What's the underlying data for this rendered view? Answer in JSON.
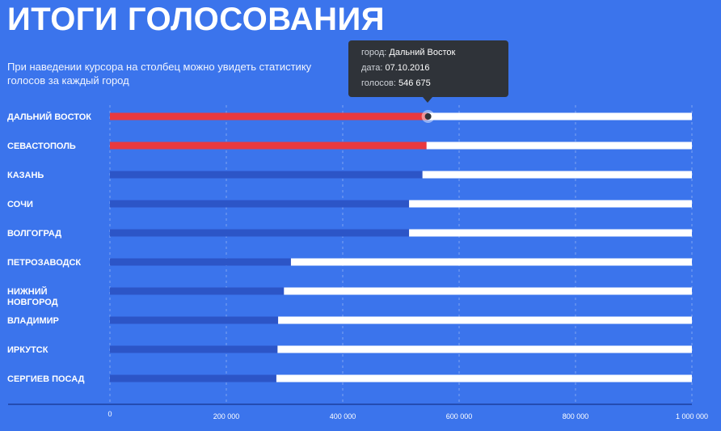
{
  "header": {
    "title": "ИТОГИ ГОЛОСОВАНИЯ",
    "subtitle": "При наведении курсора на столбец можно увидеть статистику голосов за каждый город"
  },
  "tooltip": {
    "city_label": "город:",
    "city": "Дальний Восток",
    "date_label": "дата:",
    "date": "07.10.2016",
    "votes_label": "голосов:",
    "votes": "546 675"
  },
  "colors": {
    "background": "#3b74ec",
    "bar": "#2c55c7",
    "highlight": "#e8393f",
    "track": "#ffffff"
  },
  "chart_data": {
    "type": "bar",
    "orientation": "horizontal",
    "title": "ИТОГИ ГОЛОСОВАНИЯ",
    "categories": [
      [
        "ДАЛЬНИЙ ВОСТОК"
      ],
      [
        "СЕВАСТОПОЛЬ"
      ],
      [
        "КАЗАНЬ"
      ],
      [
        "СОЧИ"
      ],
      [
        "ВОЛГОГРАД"
      ],
      [
        "ПЕТРОЗАВОДСК"
      ],
      [
        "НИЖНИЙ",
        "НОВГОРОД"
      ],
      [
        "ВЛАДИМИР"
      ],
      [
        "ИРКУТСК"
      ],
      [
        "СЕРГИЕВ ПОСАД"
      ]
    ],
    "values": [
      546675,
      544000,
      537000,
      514000,
      514000,
      311000,
      299000,
      289000,
      288000,
      286000
    ],
    "highlighted": [
      true,
      true,
      false,
      false,
      false,
      false,
      false,
      false,
      false,
      false
    ],
    "xlim": [
      0,
      1000000
    ],
    "xticks": [
      0,
      200000,
      400000,
      600000,
      800000,
      1000000
    ],
    "xtick_labels": [
      "0",
      "200 000",
      "400 000",
      "600 000",
      "800 000",
      "1 000 000"
    ],
    "grid": true,
    "hovered_index": 0
  }
}
